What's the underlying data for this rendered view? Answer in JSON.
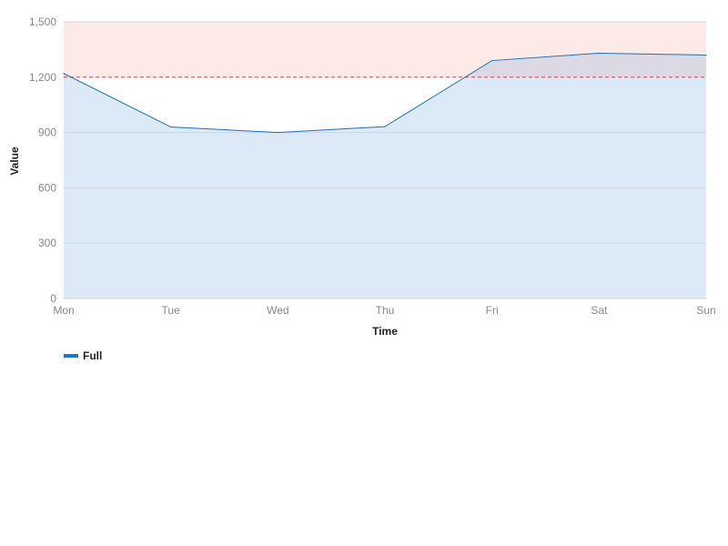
{
  "chart_data": {
    "type": "area",
    "categories": [
      "Mon",
      "Tue",
      "Wed",
      "Thu",
      "Fri",
      "Sat",
      "Sun"
    ],
    "series": [
      {
        "name": "Full",
        "values": [
          1220,
          930,
          900,
          932,
          1290,
          1330,
          1320
        ]
      }
    ],
    "ylim": [
      0,
      1500
    ],
    "yticks": [
      0,
      300,
      600,
      900,
      1200,
      1500
    ],
    "ytick_labels": [
      "0",
      "300",
      "600",
      "900",
      "1,200",
      "1,500"
    ],
    "threshold": 1200,
    "xlabel": "Time",
    "ylabel": "Value",
    "grid": true,
    "legend_position": "bottom-left"
  },
  "colors": {
    "line": "#1f6fc0",
    "area_fill": "#dce9f7",
    "threshold_line": "#d9534f",
    "threshold_band": "#fde9e6",
    "overlap_fill": "#dcd9e4",
    "legend_swatch": "#1f78d1",
    "grid": "#cfd5dc"
  }
}
